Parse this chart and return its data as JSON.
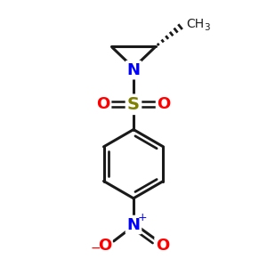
{
  "bg_color": "#ffffff",
  "line_color": "#1a1a1a",
  "N_color": "#0000ff",
  "S_color": "#808000",
  "O_color": "#ff0000",
  "line_width": 2.2,
  "figsize": [
    3.0,
    3.0
  ],
  "dpi": 100,
  "xlim": [
    0,
    10
  ],
  "ylim": [
    0,
    10
  ]
}
